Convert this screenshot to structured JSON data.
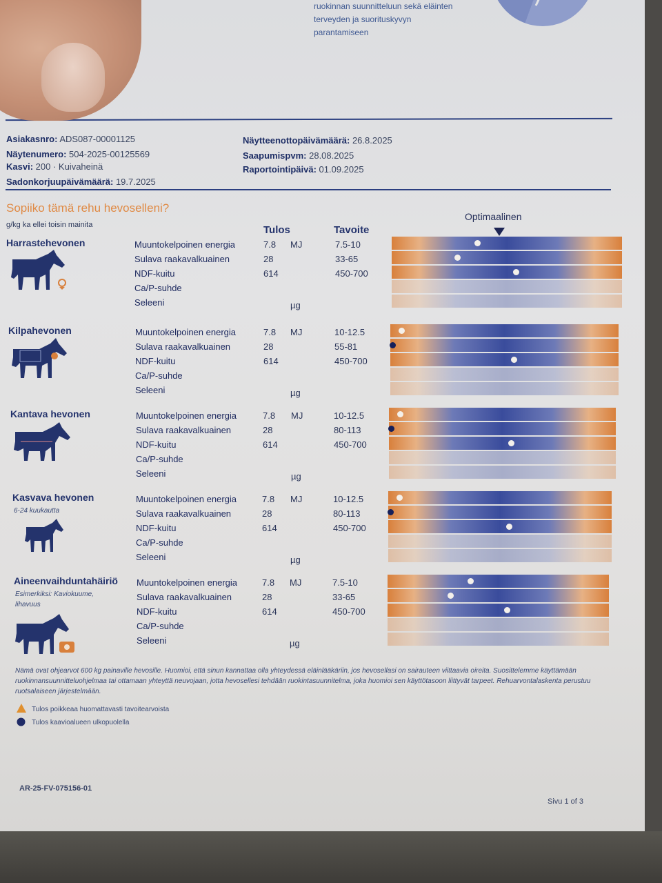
{
  "intro": {
    "lines": [
      "ruokinnan suunnitteluun sekä eläinten",
      "terveyden ja suorituskyvyn",
      "parantamiseen"
    ]
  },
  "meta": {
    "customer_label": "Asiakasnro:",
    "customer_value": "ADS087-00001125",
    "sample_label": "Näytenumero:",
    "sample_value": "504-2025-00125569",
    "crop_label": "Kasvi:",
    "crop_value": "200 · Kuivaheinä",
    "harvest_label": "Sadonkorjuupäivämäärä:",
    "harvest_value": "19.7.2025",
    "sampling_label": "Näytteenottopäivämäärä:",
    "sampling_value": "26.8.2025",
    "arrival_label": "Saapumispvm:",
    "arrival_value": "28.08.2025",
    "report_label": "Raportointipäivä:",
    "report_value": "01.09.2025"
  },
  "section": {
    "title": "Sopiiko tämä rehu hevoselleni?",
    "units_note": "g/kg ka ellei toisin mainita",
    "col_result": "Tulos",
    "col_target": "Tavoite",
    "optimal_label": "Optimaalinen"
  },
  "categories": [
    {
      "name": "Harrastehevonen",
      "sub": "",
      "rows": [
        {
          "label": "Muuntokelpoinen energia",
          "result": "7.8",
          "unit": "MJ",
          "target": "7.5-10",
          "marker": 0.37,
          "outside": false
        },
        {
          "label": "Sulava raakavalkuainen",
          "result": "28",
          "unit": "",
          "target": "33-65",
          "marker": 0.28,
          "outside": false
        },
        {
          "label": "NDF-kuitu",
          "result": "614",
          "unit": "",
          "target": "450-700",
          "marker": 0.54,
          "outside": false
        },
        {
          "label": "Ca/P-suhde",
          "result": "",
          "unit": "",
          "target": "",
          "marker": null,
          "outside": false
        },
        {
          "label": "Seleeni",
          "result": "",
          "unit": "µg",
          "target": "",
          "marker": null,
          "outside": false
        }
      ]
    },
    {
      "name": "Kilpahevonen",
      "sub": "",
      "rows": [
        {
          "label": "Muuntokelpoinen energia",
          "result": "7.8",
          "unit": "MJ",
          "target": "10-12.5",
          "marker": 0.04,
          "outside": false
        },
        {
          "label": "Sulava raakavalkuainen",
          "result": "28",
          "unit": "",
          "target": "55-81",
          "marker": 0.0,
          "outside": true
        },
        {
          "label": "NDF-kuitu",
          "result": "614",
          "unit": "",
          "target": "450-700",
          "marker": 0.54,
          "outside": false
        },
        {
          "label": "Ca/P-suhde",
          "result": "",
          "unit": "",
          "target": "",
          "marker": null,
          "outside": false
        },
        {
          "label": "Seleeni",
          "result": "",
          "unit": "µg",
          "target": "",
          "marker": null,
          "outside": false
        }
      ]
    },
    {
      "name": "Kantava hevonen",
      "sub": "",
      "rows": [
        {
          "label": "Muuntokelpoinen energia",
          "result": "7.8",
          "unit": "MJ",
          "target": "10-12.5",
          "marker": 0.04,
          "outside": false
        },
        {
          "label": "Sulava raakavalkuainen",
          "result": "28",
          "unit": "",
          "target": "80-113",
          "marker": 0.0,
          "outside": true
        },
        {
          "label": "NDF-kuitu",
          "result": "614",
          "unit": "",
          "target": "450-700",
          "marker": 0.54,
          "outside": false
        },
        {
          "label": "Ca/P-suhde",
          "result": "",
          "unit": "",
          "target": "",
          "marker": null,
          "outside": false
        },
        {
          "label": "Seleeni",
          "result": "",
          "unit": "µg",
          "target": "",
          "marker": null,
          "outside": false
        }
      ]
    },
    {
      "name": "Kasvava hevonen",
      "sub": "6-24 kuukautta",
      "rows": [
        {
          "label": "Muuntokelpoinen energia",
          "result": "7.8",
          "unit": "MJ",
          "target": "10-12.5",
          "marker": 0.04,
          "outside": false
        },
        {
          "label": "Sulava raakavalkuainen",
          "result": "28",
          "unit": "",
          "target": "80-113",
          "marker": 0.0,
          "outside": true
        },
        {
          "label": "NDF-kuitu",
          "result": "614",
          "unit": "",
          "target": "450-700",
          "marker": 0.54,
          "outside": false
        },
        {
          "label": "Ca/P-suhde",
          "result": "",
          "unit": "",
          "target": "",
          "marker": null,
          "outside": false
        },
        {
          "label": "Seleeni",
          "result": "",
          "unit": "µg",
          "target": "",
          "marker": null,
          "outside": false
        }
      ]
    },
    {
      "name": "Aineenvaihduntahäiriö",
      "sub": "Esimerkiksi: Kaviokuume, lihavuus",
      "rows": [
        {
          "label": "Muuntokelpoinen energia",
          "result": "7.8",
          "unit": "MJ",
          "target": "7.5-10",
          "marker": 0.37,
          "outside": false
        },
        {
          "label": "Sulava raakavalkuainen",
          "result": "28",
          "unit": "",
          "target": "33-65",
          "marker": 0.28,
          "outside": false
        },
        {
          "label": "NDF-kuitu",
          "result": "614",
          "unit": "",
          "target": "450-700",
          "marker": 0.54,
          "outside": false
        },
        {
          "label": "Ca/P-suhde",
          "result": "",
          "unit": "",
          "target": "",
          "marker": null,
          "outside": false
        },
        {
          "label": "Seleeni",
          "result": "",
          "unit": "µg",
          "target": "",
          "marker": null,
          "outside": false
        }
      ]
    }
  ],
  "notes": {
    "text": "Nämä ovat ohjearvot 600 kg painaville hevosille. Huomioi, että sinun kannattaa olla yhteydessä eläinlääkäriin, jos hevosellasi on sairauteen viittaavia oireita. Suosittelemme käyttämään ruokinnansuunnitteluohjelmaa tai ottamaan yhteyttä neuvojaan, jotta hevosellesi tehdään ruokintasuunnitelma, joka huomioi sen käyttötasoon liittyvät tarpeet. Rehuarvontalaskenta perustuu ruotsalaiseen järjestelmään."
  },
  "legend": {
    "warning": "Tulos poikkeaa huomattavasti tavoitearvoista",
    "outside": "Tulos kaavioalueen ulkopuolella"
  },
  "footer": {
    "code": "AR-25-FV-075156-01",
    "page": "Sivu 1 of 3"
  },
  "colors": {
    "navy": "#24336c",
    "orange": "#d8803c",
    "bar_blue": "#3a4c9c"
  }
}
